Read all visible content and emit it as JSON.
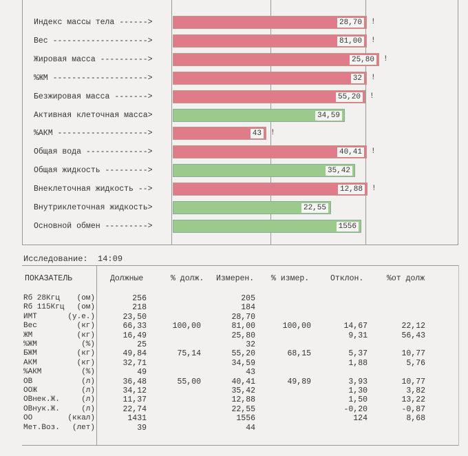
{
  "bars": [
    {
      "label": "Индекс массы тела ------>",
      "value": "28,70",
      "flag": "!",
      "color": "red",
      "end": 532
    },
    {
      "label": "Вес -------------------->",
      "value": "81,00",
      "flag": "!",
      "color": "red",
      "end": 532
    },
    {
      "label": "Жировая масса ---------->",
      "value": "25,80",
      "flag": "!",
      "color": "red",
      "end": 550
    },
    {
      "label": "%ЖМ -------------------->",
      "value": "32",
      "flag": "!",
      "color": "red",
      "end": 532
    },
    {
      "label": "Безжировая масса ------->",
      "value": "55,20",
      "flag": "!",
      "color": "red",
      "end": 530
    },
    {
      "label": "Активная клеточная масса>",
      "value": "34,59",
      "flag": "",
      "color": "green",
      "end": 500
    },
    {
      "label": "%АКМ ------------------->",
      "value": "43",
      "flag": "!",
      "color": "red",
      "end": 386
    },
    {
      "label": "Общая вода ------------->",
      "value": "40,41",
      "flag": "!",
      "color": "red",
      "end": 532
    },
    {
      "label": "Общая жидкость --------->",
      "value": "35,42",
      "flag": "",
      "color": "green",
      "end": 515
    },
    {
      "label": "Внеклеточная жидкость -->",
      "value": "12,88",
      "flag": "!",
      "color": "red",
      "end": 533
    },
    {
      "label": "Внутриклеточная жидкость>",
      "value": "22,55",
      "flag": "",
      "color": "green",
      "end": 480
    },
    {
      "label": "Основной обмен --------->",
      "value": "1556",
      "flag": "",
      "color": "green",
      "end": 524
    }
  ],
  "study": {
    "label": "Исследование:",
    "time": "14:09"
  },
  "table": {
    "headers": [
      "ПОКАЗАТЕЛЬ",
      "Должные",
      "% долж.",
      "Измерен.",
      "% измер.",
      "Отклон.",
      "%от долж"
    ],
    "rows": [
      {
        "name": "Rб 28Кгц",
        "unit": "(ом)",
        "cells": [
          "256",
          "",
          "205",
          "",
          "",
          ""
        ]
      },
      {
        "name": "Rб 115Кгц",
        "unit": "(ом)",
        "cells": [
          "218",
          "",
          "184",
          "",
          "",
          ""
        ]
      },
      {
        "name": "ИМТ",
        "unit": "(у.е.)",
        "cells": [
          "23,50",
          "",
          "28,70",
          "",
          "",
          ""
        ]
      },
      {
        "name": "Вес",
        "unit": "(кг)",
        "cells": [
          "66,33",
          "100,00",
          "81,00",
          "100,00",
          "14,67",
          "22,12"
        ]
      },
      {
        "name": "ЖМ",
        "unit": "(кг)",
        "cells": [
          "16,49",
          "",
          "25,80",
          "",
          "9,31",
          "56,43"
        ]
      },
      {
        "name": "%ЖМ",
        "unit": "(%)",
        "cells": [
          "25",
          "",
          "32",
          "",
          "",
          ""
        ]
      },
      {
        "name": "БЖМ",
        "unit": "(кг)",
        "cells": [
          "49,84",
          "75,14",
          "55,20",
          "68,15",
          "5,37",
          "10,77"
        ]
      },
      {
        "name": "АКМ",
        "unit": "(кг)",
        "cells": [
          "32,71",
          "",
          "34,59",
          "",
          "1,88",
          "5,76"
        ]
      },
      {
        "name": "%АКМ",
        "unit": "(%)",
        "cells": [
          "49",
          "",
          "43",
          "",
          "",
          ""
        ]
      },
      {
        "name": "ОВ",
        "unit": "(л)",
        "cells": [
          "36,48",
          "55,00",
          "40,41",
          "49,89",
          "3,93",
          "10,77"
        ]
      },
      {
        "name": "ООЖ",
        "unit": "(л)",
        "cells": [
          "34,12",
          "",
          "35,42",
          "",
          "1,30",
          "3,82"
        ]
      },
      {
        "name": "ОВнек.Ж.",
        "unit": "(л)",
        "cells": [
          "11,37",
          "",
          "12,88",
          "",
          "1,50",
          "13,22"
        ]
      },
      {
        "name": "ОВнук.Ж.",
        "unit": "(л)",
        "cells": [
          "22,74",
          "",
          "22,55",
          "",
          "-0,20",
          "-0,87"
        ]
      },
      {
        "name": "ОО",
        "unit": "(ккал)",
        "cells": [
          "1431",
          "",
          "1556",
          "",
          "124",
          "8,68"
        ]
      },
      {
        "name": "Мет.Воз.",
        "unit": "(лет)",
        "cells": [
          "39",
          "",
          "44",
          "",
          "",
          ""
        ]
      }
    ]
  }
}
